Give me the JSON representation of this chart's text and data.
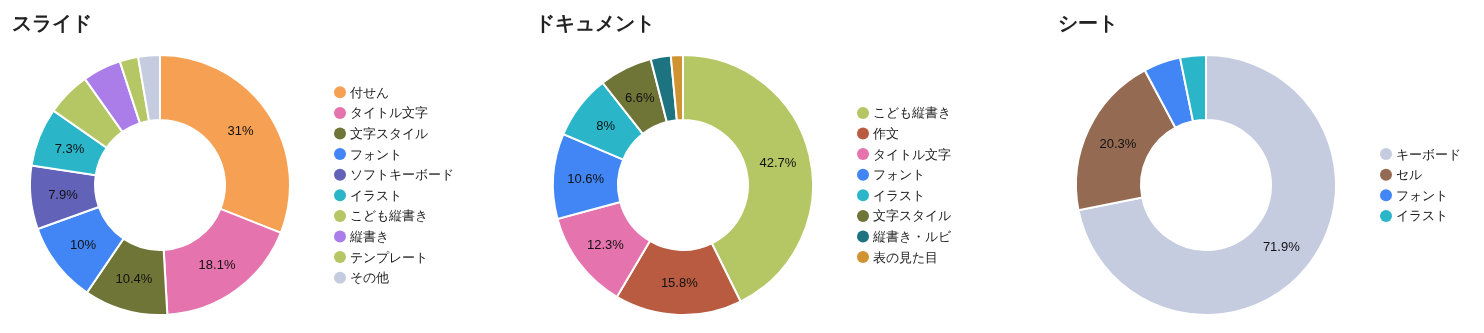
{
  "chart_data": [
    {
      "type": "donut",
      "title": "スライド",
      "legend": "right",
      "categories": [
        "付せん",
        "タイトル文字",
        "文字スタイル",
        "フォント",
        "ソフトキーボード",
        "イラスト",
        "こども縦書き",
        "縦書き",
        "テンプレート",
        "その他"
      ],
      "values": [
        31,
        18.1,
        10.4,
        10,
        7.9,
        7.3,
        5.5,
        4.8,
        2.3,
        2.7
      ],
      "value_labels": [
        "31%",
        "18.1%",
        "10.4%",
        "10%",
        "7.9%",
        "7.3%",
        null,
        null,
        null,
        null
      ],
      "colors": [
        "#f5a052",
        "#e573ad",
        "#6f7536",
        "#4285f4",
        "#6263b8",
        "#2bb5c8",
        "#b5c664",
        "#ab7de8",
        "#b5c664",
        "#c5cce0"
      ]
    },
    {
      "type": "donut",
      "title": "ドキュメント",
      "legend": "right",
      "categories": [
        "こども縦書き",
        "作文",
        "タイトル文字",
        "フォント",
        "イラスト",
        "文字スタイル",
        "縦書き・ルビ",
        "表の見た目"
      ],
      "values": [
        42.7,
        15.8,
        12.3,
        10.6,
        8,
        6.6,
        2.5,
        1.5
      ],
      "value_labels": [
        "42.7%",
        "15.8%",
        "12.3%",
        "10.6%",
        "8%",
        "6.6%",
        null,
        null
      ],
      "colors": [
        "#b5c664",
        "#b85b40",
        "#e573ad",
        "#4285f4",
        "#2bb5c8",
        "#6f7536",
        "#1d7480",
        "#d09332"
      ]
    },
    {
      "type": "donut",
      "title": "シート",
      "legend": "right",
      "categories": [
        "キーボード",
        "セル",
        "フォント",
        "イラスト"
      ],
      "values": [
        71.9,
        20.3,
        4.6,
        3.2
      ],
      "value_labels": [
        "71.9%",
        "20.3%",
        null,
        null
      ],
      "colors": [
        "#c5cce0",
        "#946a52",
        "#4285f4",
        "#2bb5c8"
      ]
    }
  ]
}
